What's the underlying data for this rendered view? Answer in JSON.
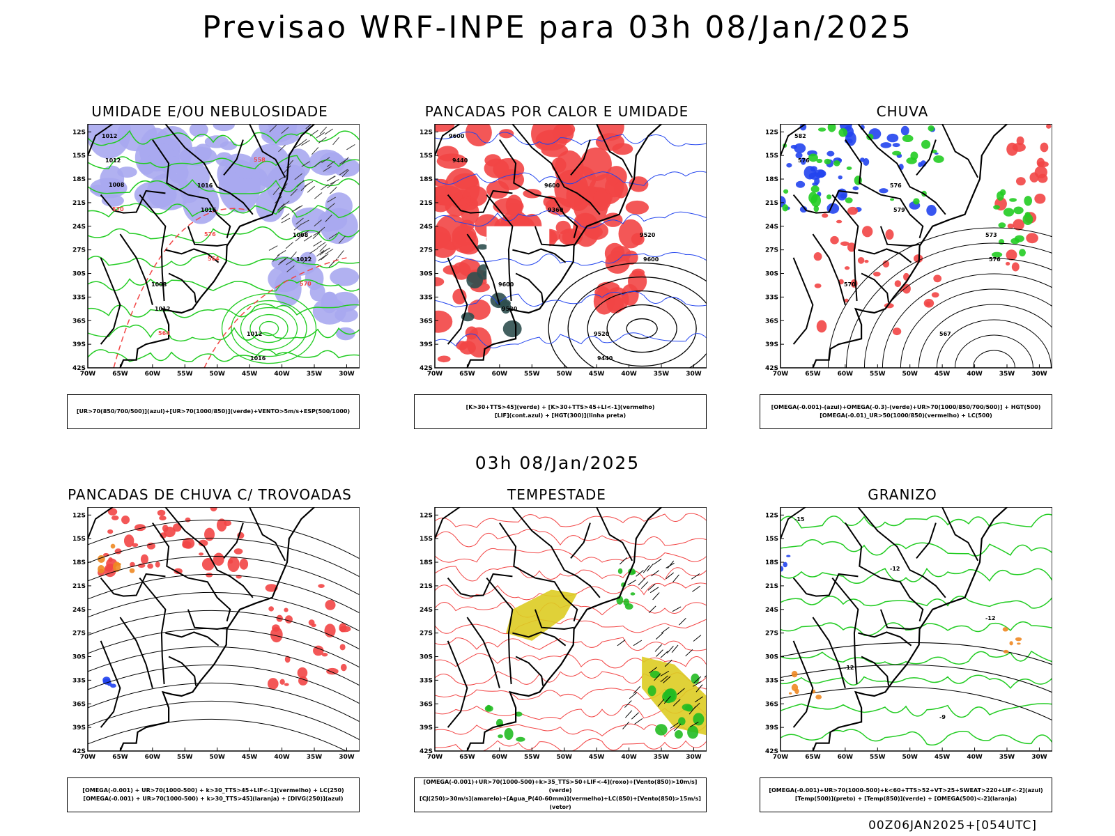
{
  "title": "Previsao WRF-INPE  para 03h 08/Jan/2025",
  "subtitle": "03h 08/Jan/2025",
  "footer": "00Z06JAN2025+[054UTC]",
  "axes": {
    "lat_ticks": [
      "12S",
      "15S",
      "18S",
      "21S",
      "24S",
      "27S",
      "30S",
      "33S",
      "36S",
      "39S",
      "42S"
    ],
    "lon_ticks": [
      "70W",
      "65W",
      "60W",
      "55W",
      "50W",
      "45W",
      "40W",
      "35W",
      "30W"
    ]
  },
  "colors": {
    "humidity_blue": "#a9a9f0",
    "humidity_green": "#22cc22",
    "red_fill": "#f24545",
    "dark_teal": "#2f4f4f",
    "blue": "#2244ee",
    "orange": "#ee8822",
    "yellow": "#ddcc22",
    "green_fill": "#22bb22",
    "black": "#000000"
  },
  "panels": [
    {
      "id": "umidade",
      "title": "UMIDADE E/OU NEBULOSIDADE",
      "legend": [
        "[UR>70(850/700/500)](azul)+[UR>70(1000/850)](verde)+VENTO>5m/s+ESP(500/1000)"
      ],
      "contour_labels": [
        "1012",
        "1016",
        "1008",
        "1008",
        "1012",
        "1012",
        "1016",
        "1012",
        "1012",
        "1016",
        "1008",
        "576",
        "570",
        "564",
        "558",
        "570",
        "564"
      ]
    },
    {
      "id": "pancadas-calor",
      "title": "PANCADAS POR CALOR E UMIDADE",
      "legend": [
        "[K>30+TTS>45](verde) + [K>30+TTS>45+LI<-1](vermelho)",
        "[LIF](cont.azul) + [HGT(300)](linha preta)"
      ],
      "contour_labels": [
        "9600",
        "9600",
        "9520",
        "9600",
        "9520",
        "9440",
        "9360",
        "9600",
        "9520",
        "9440"
      ]
    },
    {
      "id": "chuva",
      "title": "CHUVA",
      "legend": [
        "[OMEGA(-0.001)-(azul)+OMEGA(-0.3)-(verde)+UR>70(1000/850/700/500)] + HGT(500)",
        "[OMEGA(-0.01)_UR>50(1000/850)(vermelho) + LC(500)"
      ],
      "contour_labels": [
        "582",
        "576",
        "573",
        "570",
        "567",
        "576",
        "579",
        "576"
      ]
    },
    {
      "id": "trovoadas",
      "title": "PANCADAS DE CHUVA C/ TROVOADAS",
      "legend": [
        "[OMEGA(-0.001) + UR>70(1000-500) + k>30_TTS>45+LIF<-1](vermelho) + LC(250)",
        "[OMEGA(-0.001) + UR>70(1000-500) + k>30_TTS>45](laranja) + [DIVG(250)](azul)"
      ],
      "contour_labels": []
    },
    {
      "id": "tempestade",
      "title": "TEMPESTADE",
      "legend": [
        "[OMEGA(-0.001)+UR>70(1000-500)+k>35_TTS>50+LIF<-4](roxo)+[Vento(850)>10m/s](verde)",
        "[CJ(250)>30m/s](amarelo)+[Agua_P(40-60mm)](vermelho)+LC(850)+[Vento(850)>15m/s](vetor)"
      ],
      "contour_labels": []
    },
    {
      "id": "granizo",
      "title": "GRANIZO",
      "legend": [
        "[OMEGA(-0.001)+UR>70(1000-500)+k<60+TTS>52+VT>25+SWEAT>220+LIF<-2](azul)",
        "[Temp(500)](preto) + [Temp(850)](verde) + [OMEGA(500)<-2](laranja)"
      ],
      "contour_labels": [
        "-15",
        "-12",
        "-12",
        "-12",
        "-9"
      ]
    }
  ]
}
